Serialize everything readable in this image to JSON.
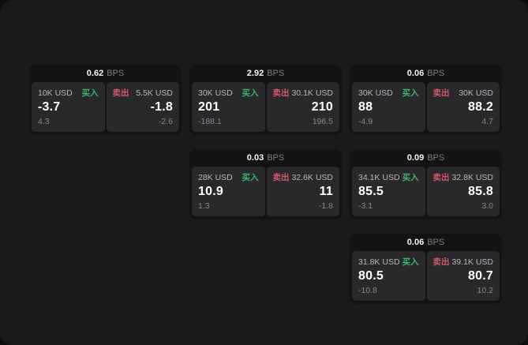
{
  "labels": {
    "unit": "BPS",
    "buy": "买入",
    "sell": "卖出"
  },
  "colors": {
    "buy_accent": "#3db56b",
    "sell_accent": "#d4566a",
    "window_bg": "#1a1a1c",
    "card_bg": "#131315",
    "panel_bg": "#29292c"
  },
  "cards": [
    {
      "row": 1,
      "col": 1,
      "bps": "0.62",
      "buy": {
        "amount": "10K USD",
        "value": "-3.7",
        "sub": "4.3"
      },
      "sell": {
        "amount": "5.5K USD",
        "value": "-1.8",
        "sub": "-2.6"
      }
    },
    {
      "row": 1,
      "col": 2,
      "bps": "2.92",
      "buy": {
        "amount": "30K USD",
        "value": "201",
        "sub": "-188.1"
      },
      "sell": {
        "amount": "30.1K USD",
        "value": "210",
        "sub": "196.5"
      }
    },
    {
      "row": 1,
      "col": 3,
      "bps": "0.06",
      "buy": {
        "amount": "30K USD",
        "value": "88",
        "sub": "-4.9"
      },
      "sell": {
        "amount": "30K USD",
        "value": "88.2",
        "sub": "4.7"
      }
    },
    {
      "row": 2,
      "col": 2,
      "bps": "0.03",
      "buy": {
        "amount": "28K USD",
        "value": "10.9",
        "sub": "1.3"
      },
      "sell": {
        "amount": "32.6K USD",
        "value": "11",
        "sub": "-1.8"
      }
    },
    {
      "row": 2,
      "col": 3,
      "bps": "0.09",
      "buy": {
        "amount": "34.1K USD",
        "value": "85.5",
        "sub": "-3.1"
      },
      "sell": {
        "amount": "32.8K USD",
        "value": "85.8",
        "sub": "3.0"
      }
    },
    {
      "row": 3,
      "col": 3,
      "bps": "0.06",
      "buy": {
        "amount": "31.8K USD",
        "value": "80.5",
        "sub": "-10.8"
      },
      "sell": {
        "amount": "39.1K USD",
        "value": "80.7",
        "sub": "10.2"
      }
    }
  ]
}
